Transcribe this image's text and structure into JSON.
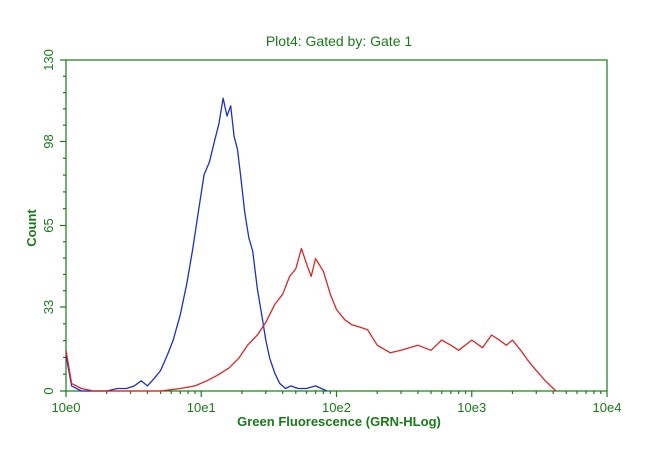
{
  "colors": {
    "axis": "#1a7a1a",
    "series_blue": "#1f2fbf",
    "series_red": "#d92626"
  },
  "chart_data": {
    "type": "line",
    "title": "Plot4:  Gated by: Gate 1",
    "xlabel": "Green Fluorescence (GRN-HLog)",
    "ylabel": "Count",
    "xscale": "log",
    "xlim": [
      1,
      10000
    ],
    "ylim": [
      0,
      130
    ],
    "x_tick_labels": [
      "10e0",
      "10e1",
      "10e2",
      "10e3",
      "10e4"
    ],
    "x_tick_values": [
      1,
      10,
      100,
      1000,
      10000
    ],
    "y_tick_labels": [
      "0",
      "33",
      "65",
      "98",
      "130"
    ],
    "y_tick_values": [
      0,
      33,
      65,
      98,
      130
    ],
    "grid": false,
    "series": [
      {
        "color": "blue",
        "x": [
          1.0,
          1.1,
          1.3,
          1.6,
          2.0,
          2.4,
          2.8,
          3.2,
          3.6,
          4.0,
          4.5,
          5.0,
          5.6,
          6.2,
          7.0,
          7.8,
          8.6,
          9.5,
          10.5,
          11.5,
          12.5,
          13.5,
          14.5,
          15.5,
          16.5,
          17.5,
          18.5,
          19.5,
          21.0,
          22.5,
          24.0,
          26.0,
          28.0,
          30.0,
          32.0,
          35.0,
          38.0,
          42.0,
          46.0,
          52.0,
          60.0,
          70.0,
          85.0
        ],
        "y": [
          14,
          2,
          0,
          0,
          0,
          1,
          1,
          2,
          4,
          2,
          5,
          8,
          14,
          20,
          30,
          42,
          55,
          70,
          85,
          90,
          98,
          105,
          115,
          108,
          112,
          100,
          95,
          85,
          70,
          60,
          55,
          40,
          30,
          20,
          13,
          7,
          3,
          1,
          2,
          1,
          1,
          2,
          0
        ]
      },
      {
        "color": "red",
        "x": [
          1.0,
          1.1,
          1.3,
          1.6,
          3.0,
          5.0,
          7.0,
          9.0,
          11.0,
          13.0,
          16.0,
          19.0,
          22.0,
          26.0,
          30.0,
          35.0,
          40.0,
          45.0,
          50.0,
          55.0,
          60.0,
          65.0,
          70.0,
          80.0,
          90.0,
          100.0,
          115.0,
          130.0,
          150.0,
          170.0,
          200.0,
          250.0,
          300.0,
          400.0,
          500.0,
          600.0,
          700.0,
          800.0,
          1000.0,
          1200.0,
          1400.0,
          1600.0,
          1800.0,
          2000.0,
          2300.0,
          2600.0,
          3000.0,
          3500.0,
          4200.0
        ],
        "y": [
          16,
          3,
          1,
          0,
          0,
          0,
          1,
          2,
          4,
          6,
          9,
          13,
          18,
          22,
          27,
          34,
          38,
          45,
          48,
          56,
          50,
          45,
          52,
          47,
          38,
          32,
          28,
          26,
          25,
          24,
          18,
          15,
          16,
          18,
          16,
          20,
          18,
          16,
          20,
          17,
          22,
          20,
          18,
          20,
          16,
          12,
          8,
          4,
          0
        ]
      }
    ]
  }
}
